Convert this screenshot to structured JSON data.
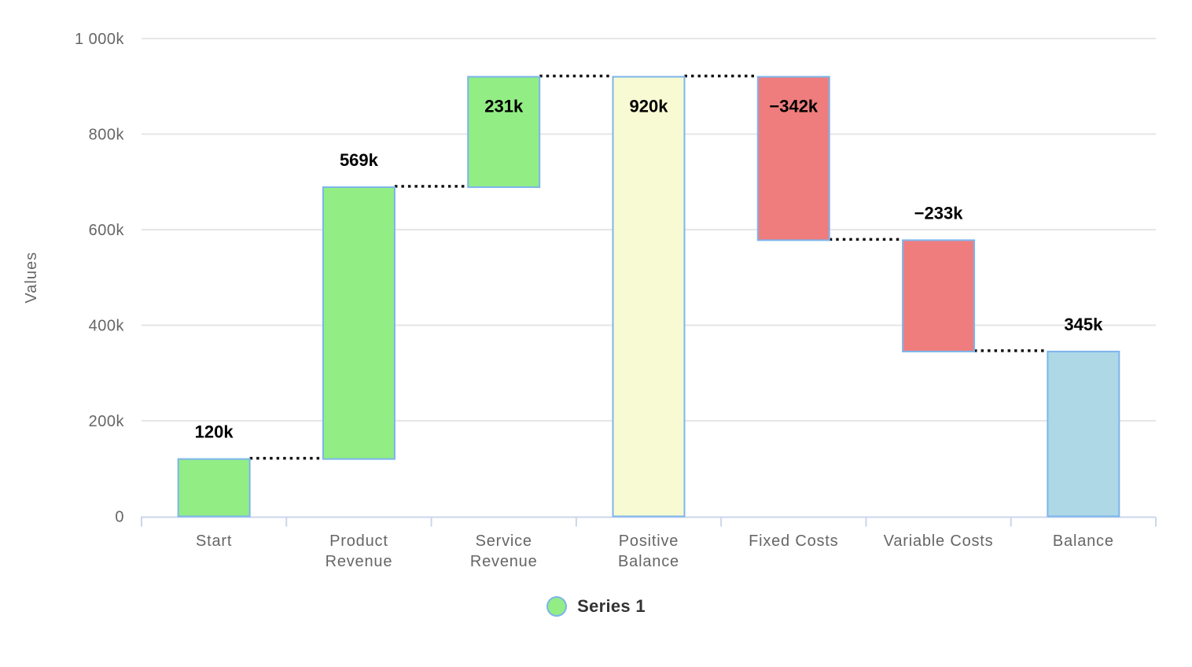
{
  "chart_data": {
    "type": "bar",
    "subtype": "waterfall",
    "title": "",
    "xlabel": "",
    "ylabel": "Values",
    "ylim": [
      0,
      1000
    ],
    "grid": true,
    "yticks": [
      {
        "value": 0,
        "label": "0"
      },
      {
        "value": 200,
        "label": "200k"
      },
      {
        "value": 400,
        "label": "400k"
      },
      {
        "value": 600,
        "label": "600k"
      },
      {
        "value": 800,
        "label": "800k"
      },
      {
        "value": 1000,
        "label": "1 000k"
      }
    ],
    "categories": [
      "Start",
      "Product Revenue",
      "Service Revenue",
      "Positive Balance",
      "Fixed Costs",
      "Variable Costs",
      "Balance"
    ],
    "category_label_lines": [
      [
        "Start"
      ],
      [
        "Product",
        "Revenue"
      ],
      [
        "Service",
        "Revenue"
      ],
      [
        "Positive",
        "Balance"
      ],
      [
        "Fixed Costs"
      ],
      [
        "Variable Costs"
      ],
      [
        "Balance"
      ]
    ],
    "points": [
      {
        "category": "Start",
        "value": 120,
        "display": "120k",
        "kind": "positive",
        "from": 0,
        "to": 120,
        "label_placement": "above"
      },
      {
        "category": "Product Revenue",
        "value": 569,
        "display": "569k",
        "kind": "positive",
        "from": 120,
        "to": 689,
        "label_placement": "above"
      },
      {
        "category": "Service Revenue",
        "value": 231,
        "display": "231k",
        "kind": "positive",
        "from": 689,
        "to": 920,
        "label_placement": "inside"
      },
      {
        "category": "Positive Balance",
        "value": 920,
        "display": "920k",
        "kind": "intermediate_sum",
        "from": 0,
        "to": 920,
        "label_placement": "inside"
      },
      {
        "category": "Fixed Costs",
        "value": -342,
        "display": "−342k",
        "kind": "negative",
        "from": 578,
        "to": 920,
        "label_placement": "inside"
      },
      {
        "category": "Variable Costs",
        "value": -233,
        "display": "−233k",
        "kind": "negative",
        "from": 345,
        "to": 578,
        "label_placement": "above"
      },
      {
        "category": "Balance",
        "value": 345,
        "display": "345k",
        "kind": "total",
        "from": 0,
        "to": 345,
        "label_placement": "above"
      }
    ],
    "connector_levels": [
      120,
      689,
      920,
      920,
      578,
      345
    ],
    "legend": {
      "position": "bottom",
      "entries": [
        {
          "label": "Series 1",
          "marker_color": "#92ED85",
          "marker_border": "#7CB5EC"
        }
      ]
    },
    "colors": {
      "positive": "#92ED85",
      "negative": "#F07D7D",
      "intermediate_sum": "#F7FAD2",
      "total": "#AED8E6",
      "bar_border": "#7CB5EC",
      "connector": "#141414",
      "gridline": "#E6E6E6",
      "axis_line": "#CCD6EB",
      "axis_text": "#666666",
      "data_label": "#000000",
      "legend_text": "#333333"
    }
  }
}
